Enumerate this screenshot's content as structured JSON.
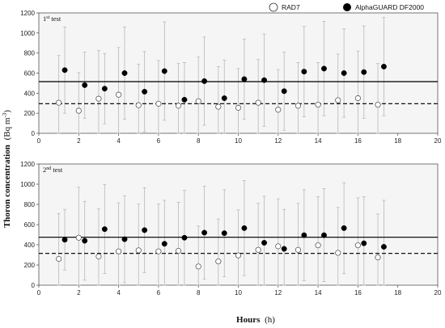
{
  "figure": {
    "y_label_main": "Thoron concentration",
    "y_label_unit": "(Bq m",
    "y_label_sup": "-3",
    "y_label_close": ")",
    "x_label_main": "Hours",
    "x_label_unit": "(h)",
    "legend": [
      {
        "name": "RAD7",
        "marker": "open-circle"
      },
      {
        "name": "AlphaGUARD DF2000",
        "marker": "filled-circle"
      }
    ],
    "colors": {
      "panel_bg": "#f5f5f5",
      "errorbar": "#b8b8b8",
      "open_marker_fill": "#ffffff",
      "filled_marker": "#000000"
    }
  },
  "chart_data": [
    {
      "type": "scatter",
      "title_main": "1",
      "title_sup": "st",
      "title_rest": " test",
      "xlim": [
        0,
        20
      ],
      "ylim": [
        0,
        1200
      ],
      "xticks": [
        0,
        2,
        4,
        6,
        8,
        10,
        12,
        14,
        16,
        18,
        20
      ],
      "yticks": [
        0,
        200,
        400,
        600,
        800,
        1000,
        1200
      ],
      "grid": false,
      "legend_position": "top",
      "mean_lines": [
        {
          "series": "AlphaGUARD DF2000",
          "style": "solid",
          "y": 515
        },
        {
          "series": "RAD7",
          "style": "dashed",
          "y": 295
        }
      ],
      "series": [
        {
          "name": "RAD7",
          "x": [
            1,
            2,
            3,
            4,
            5,
            6,
            7,
            8,
            9,
            10,
            11,
            12,
            13,
            14,
            15,
            16,
            17
          ],
          "y": [
            305,
            225,
            345,
            385,
            280,
            295,
            275,
            320,
            265,
            255,
            305,
            235,
            275,
            285,
            330,
            350,
            285
          ],
          "err": [
            470,
            380,
            480,
            470,
            410,
            430,
            420,
            440,
            400,
            390,
            430,
            400,
            430,
            420,
            460,
            470,
            410
          ]
        },
        {
          "name": "AlphaGUARD DF2000",
          "x": [
            1.3,
            2.3,
            3.3,
            4.3,
            5.3,
            6.3,
            7.3,
            8.3,
            9.3,
            10.3,
            11.3,
            12.3,
            13.3,
            14.3,
            15.3,
            16.3,
            17.3
          ],
          "y": [
            630,
            480,
            445,
            600,
            415,
            620,
            335,
            520,
            350,
            540,
            530,
            420,
            615,
            645,
            600,
            610,
            665
          ],
          "err": [
            430,
            330,
            350,
            460,
            400,
            490,
            370,
            440,
            380,
            400,
            460,
            390,
            450,
            470,
            440,
            460,
            490
          ]
        }
      ]
    },
    {
      "type": "scatter",
      "title_main": "2",
      "title_sup": "nd",
      "title_rest": " test",
      "xlim": [
        0,
        20
      ],
      "ylim": [
        0,
        1200
      ],
      "xticks": [
        0,
        2,
        4,
        6,
        8,
        10,
        12,
        14,
        16,
        18,
        20
      ],
      "yticks": [
        0,
        200,
        400,
        600,
        800,
        1000,
        1200
      ],
      "grid": false,
      "mean_lines": [
        {
          "series": "AlphaGUARD DF2000",
          "style": "solid",
          "y": 475
        },
        {
          "series": "RAD7",
          "style": "dashed",
          "y": 315
        }
      ],
      "series": [
        {
          "name": "RAD7",
          "x": [
            1,
            2,
            3,
            4,
            5,
            6,
            7,
            8,
            9,
            10,
            11,
            12,
            13,
            14,
            15,
            16,
            17
          ],
          "y": [
            260,
            470,
            285,
            335,
            345,
            335,
            340,
            185,
            235,
            295,
            350,
            385,
            350,
            395,
            320,
            395,
            275
          ],
          "err": [
            450,
            500,
            470,
            480,
            460,
            470,
            480,
            400,
            420,
            450,
            460,
            470,
            460,
            480,
            450,
            470,
            430
          ]
        },
        {
          "name": "AlphaGUARD DF2000",
          "x": [
            1.3,
            2.3,
            3.3,
            4.3,
            5.3,
            6.3,
            7.3,
            8.3,
            9.3,
            10.3,
            11.3,
            12.3,
            13.3,
            14.3,
            15.3,
            16.3,
            17.3
          ],
          "y": [
            450,
            440,
            555,
            455,
            545,
            410,
            470,
            520,
            515,
            565,
            420,
            360,
            495,
            495,
            565,
            415,
            380
          ],
          "err": [
            300,
            390,
            440,
            430,
            420,
            430,
            470,
            460,
            430,
            470,
            460,
            390,
            450,
            460,
            450,
            460,
            460
          ]
        }
      ]
    }
  ]
}
